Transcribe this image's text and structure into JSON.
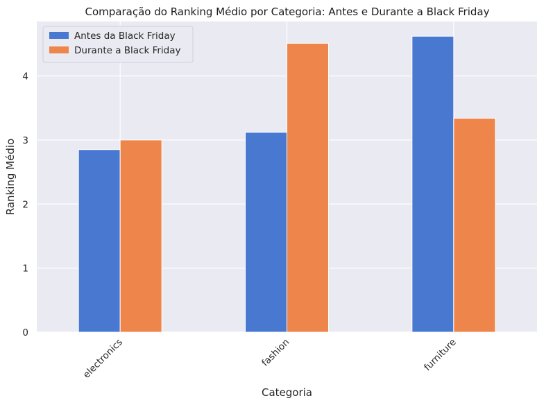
{
  "colors": {
    "background": "#ffffff",
    "plot_background": "#eaeaf2",
    "grid": "#ffffff",
    "series": [
      "#4878d0",
      "#ee854a"
    ]
  },
  "chart_data": {
    "type": "bar",
    "title": "Comparação do Ranking Médio por Categoria: Antes e Durante a Black Friday",
    "xlabel": "Categoria",
    "ylabel": "Ranking Médio",
    "categories": [
      "electronics",
      "fashion",
      "furniture"
    ],
    "series": [
      {
        "name": "Antes da Black Friday",
        "values": [
          2.85,
          3.12,
          4.62
        ]
      },
      {
        "name": "Durante a Black Friday",
        "values": [
          3.0,
          4.51,
          3.34
        ]
      }
    ],
    "yticks": [
      0,
      1,
      2,
      3,
      4
    ],
    "ylim": [
      0,
      4.85
    ],
    "grid": true,
    "legend_position": "top-left",
    "xtick_rotation": 45
  }
}
